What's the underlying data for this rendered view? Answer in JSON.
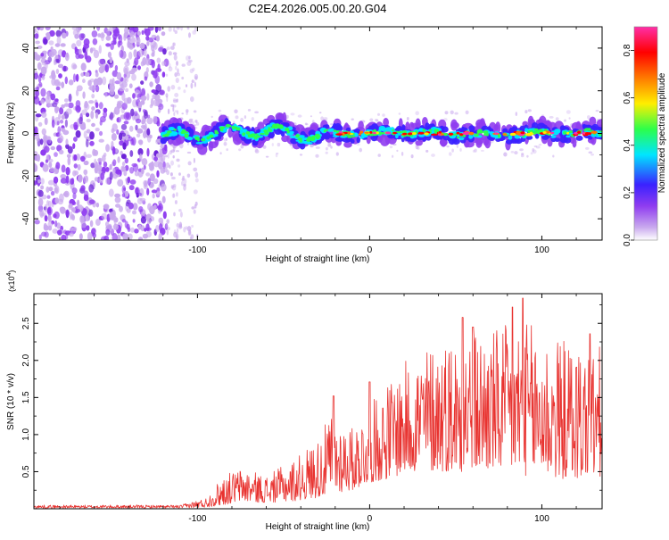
{
  "title": "C2E4.2026.005.00.20.G04",
  "colors": {
    "snr_line": "#e8322f",
    "background": "#ffffff",
    "frame": "#000000",
    "colormap": [
      "#ffffff",
      "#c9a9ee",
      "#8f3cf0",
      "#3a22ff",
      "#00e5ff",
      "#2cff4a",
      "#ffee00",
      "#ff7a00",
      "#ff0000",
      "#ff2fa8"
    ]
  },
  "chart_data": [
    {
      "type": "heatmap",
      "name": "spectrogram",
      "xlabel": "Height of straight line (km)",
      "ylabel": "Frequency (Hz)",
      "xlim": [
        -195,
        135
      ],
      "ylim": [
        -50,
        50
      ],
      "xticks": [
        -100,
        0,
        100
      ],
      "xtick_labels": [
        "-100",
        "0",
        "100"
      ],
      "yticks": [
        40,
        20,
        0,
        -20,
        -40
      ],
      "ytick_labels": [
        "40",
        "20",
        "0",
        "-20",
        "-40"
      ],
      "noise_region_x": [
        -195,
        -118
      ],
      "sparse_noise_x": [
        -118,
        -100
      ],
      "signal_start_x": -120,
      "signal_center_hz": 0,
      "signal_halfwidth_hz": 4,
      "colorbar": {
        "label": "Normalized spectral amplitude",
        "range": [
          0,
          0.9
        ],
        "ticks": [
          0.8,
          0.6,
          0.4,
          0.2,
          0.0
        ],
        "tick_labels": [
          "0.8",
          "0.6",
          "0.4",
          "0.2",
          "0.0"
        ]
      }
    },
    {
      "type": "line",
      "name": "snr",
      "xlabel": "Height of straight line (km)",
      "ylabel": "SNR (10 * v/v)",
      "y_multiplier": "(x10",
      "y_multiplier_exp": "4",
      "y_multiplier_close": ")",
      "xlim": [
        -195,
        135
      ],
      "ylim": [
        0,
        2.9
      ],
      "xticks": [
        -100,
        0,
        100
      ],
      "xtick_labels": [
        "-100",
        "0",
        "100"
      ],
      "yticks": [
        0.5,
        1.0,
        1.5,
        2.0,
        2.5
      ],
      "ytick_labels": [
        "0.5",
        "1.0",
        "1.5",
        "2.0",
        "2.5"
      ],
      "envelope": [
        {
          "x": -195,
          "low": 0.01,
          "high": 0.05
        },
        {
          "x": -110,
          "low": 0.01,
          "high": 0.05
        },
        {
          "x": -95,
          "low": 0.02,
          "high": 0.15
        },
        {
          "x": -85,
          "low": 0.05,
          "high": 0.45
        },
        {
          "x": -75,
          "low": 0.1,
          "high": 0.55
        },
        {
          "x": -60,
          "low": 0.08,
          "high": 0.45
        },
        {
          "x": -45,
          "low": 0.1,
          "high": 0.65
        },
        {
          "x": -30,
          "low": 0.15,
          "high": 0.95
        },
        {
          "x": -22,
          "low": 0.2,
          "high": 1.3
        },
        {
          "x": -10,
          "low": 0.25,
          "high": 1.1
        },
        {
          "x": 0,
          "low": 0.35,
          "high": 1.4
        },
        {
          "x": 10,
          "low": 0.4,
          "high": 1.7
        },
        {
          "x": 25,
          "low": 0.5,
          "high": 2.1
        },
        {
          "x": 40,
          "low": 0.5,
          "high": 2.3
        },
        {
          "x": 55,
          "low": 0.5,
          "high": 2.4
        },
        {
          "x": 75,
          "low": 0.5,
          "high": 2.45
        },
        {
          "x": 90,
          "low": 0.45,
          "high": 2.55
        },
        {
          "x": 110,
          "low": 0.4,
          "high": 2.3
        },
        {
          "x": 135,
          "low": 0.4,
          "high": 2.2
        }
      ],
      "peaks": [
        {
          "x": -21,
          "y": 1.52
        },
        {
          "x": 0,
          "y": 1.71
        },
        {
          "x": 54,
          "y": 2.58
        },
        {
          "x": 60,
          "y": 2.45
        },
        {
          "x": 83,
          "y": 2.72
        },
        {
          "x": 89,
          "y": 2.84
        },
        {
          "x": 128,
          "y": 2.36
        }
      ]
    }
  ]
}
